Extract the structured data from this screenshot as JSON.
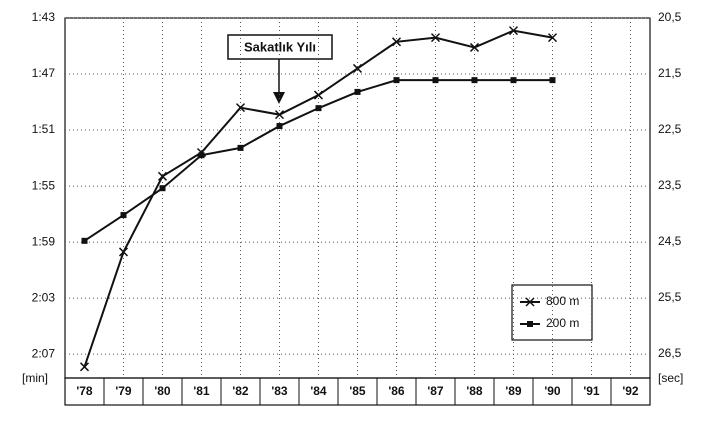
{
  "chart_data": {
    "type": "line",
    "annotation": "Sakatlık Yılı",
    "y_label": "[min]",
    "y2_label": "[sec]",
    "categories": [
      "'78",
      "'79",
      "'80",
      "'81",
      "'82",
      "'83",
      "'84",
      "'85",
      "'86",
      "'87",
      "'88",
      "'89",
      "'90",
      "'91",
      "'92"
    ],
    "series": [
      {
        "name": "800 m",
        "color": "#111111",
        "marker": "x",
        "axis": "y",
        "values": [
          127.9,
          119.7,
          114.3,
          112.6,
          109.4,
          109.9,
          108.5,
          106.6,
          104.7,
          104.4,
          105.1,
          103.9,
          104.4,
          null,
          null
        ]
      },
      {
        "name": "200 m",
        "color": "#111111",
        "marker": "square",
        "axis": "y2",
        "values": [
          24.48,
          24.02,
          23.54,
          22.95,
          22.82,
          22.43,
          22.11,
          21.82,
          21.61,
          21.61,
          21.61,
          21.61,
          21.61,
          null,
          null
        ]
      }
    ],
    "ylim": [
      128.7,
      103
    ],
    "yticks": [
      {
        "value": 103,
        "label": "1:43"
      },
      {
        "value": 107,
        "label": "1:47"
      },
      {
        "value": 111,
        "label": "1:51"
      },
      {
        "value": 115,
        "label": "1:55"
      },
      {
        "value": 119,
        "label": "1:59"
      },
      {
        "value": 123,
        "label": "2:03"
      },
      {
        "value": 127,
        "label": "2:07"
      }
    ],
    "y2lim": [
      26.93,
      20.5
    ],
    "y2ticks": [
      {
        "value": 20.5,
        "label": "20,5"
      },
      {
        "value": 21.5,
        "label": "21,5"
      },
      {
        "value": 22.5,
        "label": "22,5"
      },
      {
        "value": 23.5,
        "label": "23,5"
      },
      {
        "value": 24.5,
        "label": "24,5"
      },
      {
        "value": 25.5,
        "label": "25,5"
      },
      {
        "value": 26.5,
        "label": "26,5"
      }
    ],
    "grid": true,
    "legend": "lower right"
  }
}
